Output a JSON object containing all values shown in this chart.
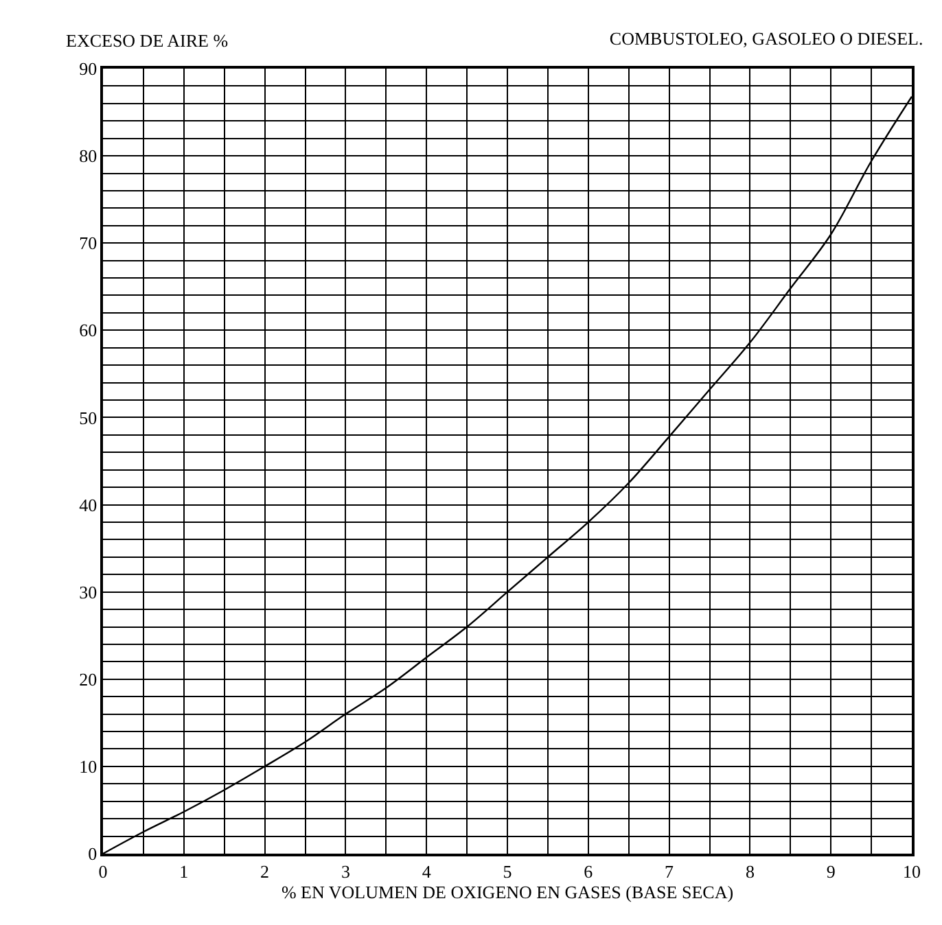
{
  "chart_data": {
    "type": "line",
    "title": "COMBUSTOLEO, GASOLEO O DIESEL.",
    "ylabel": "EXCESO DE AIRE %",
    "xlabel": "% EN VOLUMEN DE OXIGENO EN GASES (BASE SECA)",
    "x": [
      0,
      0.5,
      1,
      1.5,
      2,
      2.5,
      3,
      3.5,
      4,
      4.5,
      5,
      5.5,
      6,
      6.5,
      7,
      7.5,
      8,
      8.5,
      9,
      9.5,
      10
    ],
    "series": [
      {
        "color": "#000000",
        "values": [
          0,
          2.5,
          4.8,
          7.3,
          10,
          12.8,
          16,
          19,
          22.5,
          26,
          30,
          34,
          38,
          42.5,
          47.8,
          53.2,
          58.6,
          64.8,
          71,
          79.4,
          86.8
        ]
      }
    ],
    "xlim": [
      0,
      10
    ],
    "ylim": [
      0,
      90
    ],
    "xticks": [
      0,
      {
        "value": 0.5,
        "label": null
      },
      1,
      {
        "value": 1.5,
        "label": null
      },
      2,
      {
        "value": 2.5,
        "label": null
      },
      3,
      {
        "value": 3.5,
        "label": null
      },
      4,
      {
        "value": 4.5,
        "label": null
      },
      5,
      {
        "value": 5.5,
        "label": null
      },
      6,
      {
        "value": 6.5,
        "label": null
      },
      7,
      {
        "value": 7.5,
        "label": null
      },
      8,
      {
        "value": 8.5,
        "label": null
      },
      9,
      {
        "value": 9.5,
        "label": null
      },
      10
    ],
    "yticks": [
      0,
      {
        "value": 2,
        "label": null
      },
      {
        "value": 4,
        "label": null
      },
      {
        "value": 6,
        "label": null
      },
      {
        "value": 8,
        "label": null
      },
      10,
      {
        "value": 12,
        "label": null
      },
      {
        "value": 14,
        "label": null
      },
      {
        "value": 16,
        "label": null
      },
      {
        "value": 18,
        "label": null
      },
      20,
      {
        "value": 22,
        "label": null
      },
      {
        "value": 24,
        "label": null
      },
      {
        "value": 26,
        "label": null
      },
      {
        "value": 28,
        "label": null
      },
      30,
      {
        "value": 32,
        "label": null
      },
      {
        "value": 34,
        "label": null
      },
      {
        "value": 36,
        "label": null
      },
      {
        "value": 38,
        "label": null
      },
      40,
      {
        "value": 42,
        "label": null
      },
      {
        "value": 44,
        "label": null
      },
      {
        "value": 46,
        "label": null
      },
      {
        "value": 48,
        "label": null
      },
      50,
      {
        "value": 52,
        "label": null
      },
      {
        "value": 54,
        "label": null
      },
      {
        "value": 56,
        "label": null
      },
      {
        "value": 58,
        "label": null
      },
      60,
      {
        "value": 62,
        "label": null
      },
      {
        "value": 64,
        "label": null
      },
      {
        "value": 66,
        "label": null
      },
      {
        "value": 68,
        "label": null
      },
      70,
      {
        "value": 72,
        "label": null
      },
      {
        "value": 74,
        "label": null
      },
      {
        "value": 76,
        "label": null
      },
      {
        "value": 78,
        "label": null
      },
      80,
      {
        "value": 82,
        "label": null
      },
      {
        "value": 84,
        "label": null
      },
      {
        "value": 86,
        "label": null
      },
      {
        "value": 88,
        "label": null
      },
      90
    ],
    "grid": true,
    "marker": "none",
    "line_style": "solid"
  }
}
